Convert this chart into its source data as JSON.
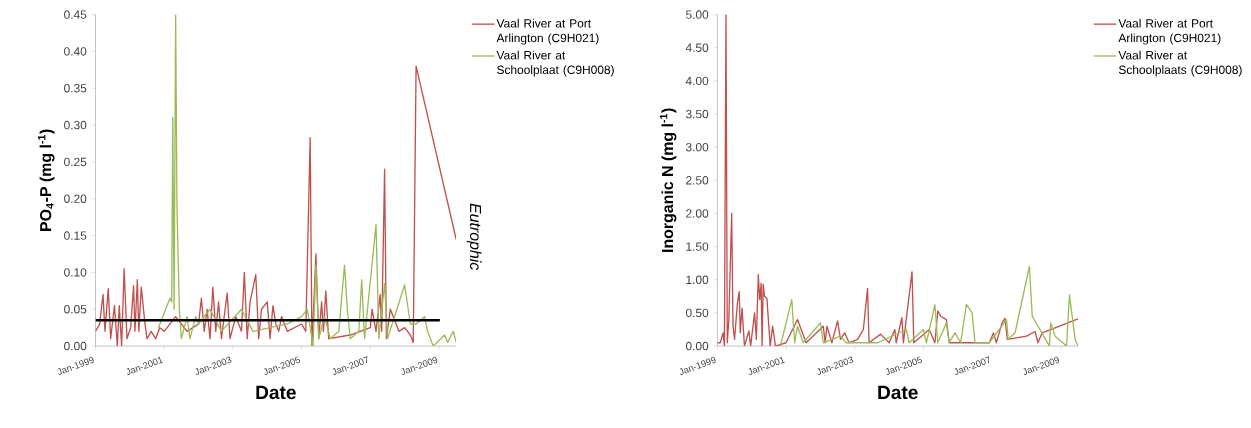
{
  "chart_data": [
    {
      "type": "line",
      "xlabel": "Date",
      "ylabel": "PO$_{4}$-P (mg l$^{-1}$)",
      "xlim": [
        "1999-01",
        "2009-07"
      ],
      "ylim": [
        0,
        0.45
      ],
      "xticks": [
        {
          "value": "1999-01",
          "label": "Jan-1999"
        },
        {
          "value": "2001-01",
          "label": "Jan-2001"
        },
        {
          "value": "2003-01",
          "label": "Jan-2003"
        },
        {
          "value": "2005-01",
          "label": "Jan-2005"
        },
        {
          "value": "2007-01",
          "label": "Jan-2007"
        },
        {
          "value": "2009-01",
          "label": "Jan-2009"
        }
      ],
      "yticks": [
        {
          "value": 0,
          "label": "0.00"
        },
        {
          "value": 0.05,
          "label": "0.05"
        },
        {
          "value": 0.1,
          "label": "0.10"
        },
        {
          "value": 0.15,
          "label": "0.15"
        },
        {
          "value": 0.2,
          "label": "0.20"
        },
        {
          "value": 0.25,
          "label": "0.25"
        },
        {
          "value": 0.3,
          "label": "0.30"
        },
        {
          "value": 0.35,
          "label": "0.35"
        },
        {
          "value": 0.4,
          "label": "0.40"
        },
        {
          "value": 0.45,
          "label": "0.45"
        }
      ],
      "legend": "top right",
      "ref_lines": [
        {
          "axis": "y",
          "value": 0.035,
          "color": "#000000"
        }
      ],
      "annotations": [
        "Eutrophic"
      ],
      "series": [
        {
          "name": "Vaal River at Port Arlington (C9H021)",
          "color": "#c0504d",
          "x": [
            "1999-01-01",
            "1999-02-15",
            "1999-03-20",
            "1999-04-10",
            "1999-05-15",
            "1999-06-10",
            "1999-07-20",
            "1999-08-20",
            "1999-09-10",
            "1999-10-05",
            "1999-11-01",
            "1999-12-01",
            "2000-01-10",
            "2000-02-10",
            "2000-02-25",
            "2000-03-20",
            "2000-04-05",
            "2000-05-01",
            "2000-06-10",
            "2000-07-01",
            "2000-08-15",
            "2000-10-01",
            "2000-11-15",
            "2001-01-01",
            "2001-05-01",
            "2001-07-01",
            "2001-09-01",
            "2002-01-01",
            "2002-02-01",
            "2002-03-01",
            "2002-04-01",
            "2002-05-01",
            "2002-06-01",
            "2002-07-01",
            "2002-08-01",
            "2002-09-01",
            "2002-11-01",
            "2002-12-01",
            "2003-02-01",
            "2003-04-01",
            "2003-05-01",
            "2003-06-01",
            "2003-07-01",
            "2003-09-01",
            "2003-10-01",
            "2003-11-01",
            "2004-01-01",
            "2004-02-01",
            "2004-03-01",
            "2004-04-01",
            "2004-05-01",
            "2004-06-01",
            "2004-08-01",
            "2005-01-01",
            "2005-02-15",
            "2005-04-01",
            "2005-04-20",
            "2005-06-01",
            "2005-07-01",
            "2005-08-01",
            "2005-08-20",
            "2005-09-15",
            "2005-10-15",
            "2006-06-01",
            "2007-01-01",
            "2007-01-20",
            "2007-03-01",
            "2007-04-15",
            "2007-05-01",
            "2007-06-01",
            "2007-06-20",
            "2007-08-01",
            "2007-10-01",
            "2007-11-01",
            "2008-01-01",
            "2008-03-01",
            "2008-04-01",
            "2008-05-01",
            "2009-07-01"
          ],
          "values": [
            0.02,
            0.03,
            0.07,
            0.02,
            0.078,
            0.01,
            0.055,
            0.0,
            0.055,
            0.0,
            0.105,
            0.01,
            0.025,
            0.082,
            0.02,
            0.09,
            0.02,
            0.08,
            0.03,
            0.01,
            0.02,
            0.01,
            0.025,
            0.02,
            0.04,
            0.03,
            0.02,
            0.03,
            0.065,
            0.02,
            0.05,
            0.01,
            0.08,
            0.02,
            0.06,
            0.01,
            0.072,
            0.01,
            0.04,
            0.02,
            0.1,
            0.01,
            0.06,
            0.097,
            0.01,
            0.05,
            0.06,
            0.01,
            0.055,
            0.03,
            0.02,
            0.04,
            0.02,
            0.03,
            0.02,
            0.283,
            0.0,
            0.125,
            0.01,
            0.06,
            0.02,
            0.075,
            0.01,
            0.015,
            0.025,
            0.05,
            0.02,
            0.07,
            0.02,
            0.24,
            0.01,
            0.05,
            0.03,
            0.02,
            0.025,
            0.015,
            0.005,
            0.38,
            0.145
          ]
        },
        {
          "name": "Vaal River at Schoolplaat (C9H008)",
          "color": "#9bbb59",
          "x": [
            "2000-11-01",
            "2001-03-01",
            "2001-03-20",
            "2001-04-01",
            "2001-04-15",
            "2001-05-01",
            "2001-05-15",
            "2001-06-10",
            "2001-07-01",
            "2001-09-01",
            "2001-10-01",
            "2001-12-01",
            "2002-01-01",
            "2002-05-01",
            "2002-09-01",
            "2003-04-01",
            "2003-08-01",
            "2004-08-01",
            "2005-01-01",
            "2005-03-01",
            "2005-05-01",
            "2005-06-01",
            "2005-07-01",
            "2005-09-01",
            "2005-11-01",
            "2006-02-01",
            "2006-04-01",
            "2006-05-01",
            "2006-06-01",
            "2006-09-01",
            "2006-10-01",
            "2006-11-01",
            "2007-03-01",
            "2007-04-01",
            "2007-06-01",
            "2007-07-01",
            "2008-01-01",
            "2008-03-01",
            "2008-05-01",
            "2008-08-01",
            "2008-09-01",
            "2008-11-01",
            "2009-03-01",
            "2009-04-01",
            "2009-06-01",
            "2009-07-01"
          ],
          "values": [
            0.025,
            0.065,
            0.06,
            0.31,
            0.05,
            0.45,
            0.19,
            0.05,
            0.01,
            0.04,
            0.01,
            0.04,
            0.03,
            0.05,
            0.02,
            0.05,
            0.02,
            0.03,
            0.04,
            0.05,
            0.0,
            0.11,
            0.01,
            0.04,
            0.01,
            0.02,
            0.11,
            0.05,
            0.01,
            0.02,
            0.09,
            0.01,
            0.165,
            0.01,
            0.085,
            0.01,
            0.083,
            0.03,
            0.03,
            0.04,
            0.02,
            0.0,
            0.015,
            0.005,
            0.02,
            0.005
          ]
        }
      ]
    },
    {
      "type": "line",
      "xlabel": "Date",
      "ylabel": "Inorganic N (mg l$^{-1}$)",
      "xlim": [
        "1999-01",
        "2009-07"
      ],
      "ylim": [
        0,
        5
      ],
      "xticks": [
        {
          "value": "1999-01",
          "label": "Jan-1999"
        },
        {
          "value": "2001-01",
          "label": "Jan-2001"
        },
        {
          "value": "2003-01",
          "label": "Jan-2003"
        },
        {
          "value": "2005-01",
          "label": "Jan-2005"
        },
        {
          "value": "2007-01",
          "label": "Jan-2007"
        },
        {
          "value": "2009-01",
          "label": "Jan-2009"
        }
      ],
      "yticks": [
        {
          "value": 0,
          "label": "0.00"
        },
        {
          "value": 0.5,
          "label": "0.50"
        },
        {
          "value": 1,
          "label": "1.00"
        },
        {
          "value": 1.5,
          "label": "1.50"
        },
        {
          "value": 2,
          "label": "2.00"
        },
        {
          "value": 2.5,
          "label": "2.50"
        },
        {
          "value": 3,
          "label": "3.00"
        },
        {
          "value": 3.5,
          "label": "3.50"
        },
        {
          "value": 4,
          "label": "4.00"
        },
        {
          "value": 4.5,
          "label": "4.50"
        },
        {
          "value": 5,
          "label": "5.00"
        }
      ],
      "legend": "top right",
      "series": [
        {
          "name": "Vaal River at Port Arlington (C9H021)",
          "color": "#c0504d",
          "x": [
            "1999-01-01",
            "1999-02-01",
            "1999-03-01",
            "1999-03-15",
            "1999-04-01",
            "1999-04-15",
            "1999-05-01",
            "1999-06-01",
            "1999-06-15",
            "1999-07-01",
            "1999-08-01",
            "1999-08-20",
            "1999-09-01",
            "1999-09-20",
            "1999-10-15",
            "1999-12-01",
            "1999-12-20",
            "2000-02-01",
            "2000-02-20",
            "2000-03-10",
            "2000-03-25",
            "2000-04-10",
            "2000-04-20",
            "2000-05-01",
            "2000-05-15",
            "2000-06-10",
            "2000-07-15",
            "2000-08-10",
            "2000-09-10",
            "2001-01-01",
            "2001-05-01",
            "2001-08-01",
            "2002-02-01",
            "2002-02-20",
            "2002-03-10",
            "2002-05-01",
            "2002-07-01",
            "2002-08-01",
            "2002-09-15",
            "2002-11-01",
            "2003-02-01",
            "2003-04-01",
            "2003-05-15",
            "2003-06-01",
            "2003-10-01",
            "2004-01-01",
            "2004-03-01",
            "2004-03-15",
            "2004-05-15",
            "2004-06-01",
            "2004-09-01",
            "2004-09-20",
            "2005-03-01",
            "2005-05-01",
            "2005-06-01",
            "2005-07-01",
            "2005-09-01",
            "2005-10-01",
            "2006-12-01",
            "2007-01-15",
            "2007-02-15",
            "2007-04-15",
            "2007-05-15",
            "2007-06-10",
            "2008-01-01",
            "2008-04-01",
            "2008-05-01",
            "2008-06-15",
            "2009-07-01"
          ],
          "values": [
            0.05,
            0.05,
            0.2,
            0.0,
            5.0,
            0.05,
            0.4,
            2.0,
            0.3,
            0.1,
            0.65,
            0.82,
            0.2,
            0.57,
            0.0,
            0.23,
            0.0,
            0.5,
            0.1,
            1.08,
            0.7,
            0.95,
            0.0,
            0.93,
            0.75,
            0.72,
            0.0,
            0.3,
            0.0,
            0.05,
            0.4,
            0.05,
            0.3,
            0.05,
            0.3,
            0.05,
            0.38,
            0.1,
            0.2,
            0.05,
            0.1,
            0.25,
            0.87,
            0.05,
            0.18,
            0.05,
            0.25,
            0.05,
            0.43,
            0.05,
            1.12,
            0.05,
            0.25,
            0.05,
            0.53,
            0.45,
            0.4,
            0.05,
            0.05,
            0.2,
            0.05,
            0.35,
            0.42,
            0.1,
            0.15,
            0.22,
            0.05,
            0.2,
            0.41
          ]
        },
        {
          "name": "Vaal River at Schoolplaats (C9H008)",
          "color": "#9bbb59",
          "x": [
            "2000-11-01",
            "2001-03-01",
            "2001-04-01",
            "2001-05-01",
            "2001-07-01",
            "2001-11-01",
            "2002-01-01",
            "2002-02-01",
            "2002-08-01",
            "2002-10-01",
            "2003-09-01",
            "2004-07-01",
            "2004-08-01",
            "2005-01-01",
            "2005-02-01",
            "2005-05-01",
            "2005-06-01",
            "2005-09-01",
            "2005-10-01",
            "2005-12-01",
            "2006-02-01",
            "2006-04-01",
            "2006-06-01",
            "2006-07-01",
            "2006-12-01",
            "2007-06-01",
            "2007-06-20",
            "2007-09-01",
            "2008-02-01",
            "2008-03-01",
            "2008-05-01",
            "2008-09-01",
            "2008-09-15",
            "2008-11-01",
            "2009-03-01",
            "2009-04-01",
            "2009-06-01",
            "2009-07-01"
          ],
          "values": [
            0.0,
            0.7,
            0.05,
            0.3,
            0.05,
            0.25,
            0.35,
            0.05,
            0.15,
            0.05,
            0.05,
            0.25,
            0.05,
            0.25,
            0.05,
            0.62,
            0.05,
            0.35,
            0.05,
            0.2,
            0.05,
            0.63,
            0.5,
            0.05,
            0.05,
            0.4,
            0.1,
            0.2,
            1.2,
            0.45,
            0.3,
            0.0,
            0.35,
            0.15,
            0.0,
            0.77,
            0.1,
            0.0
          ]
        }
      ]
    }
  ]
}
